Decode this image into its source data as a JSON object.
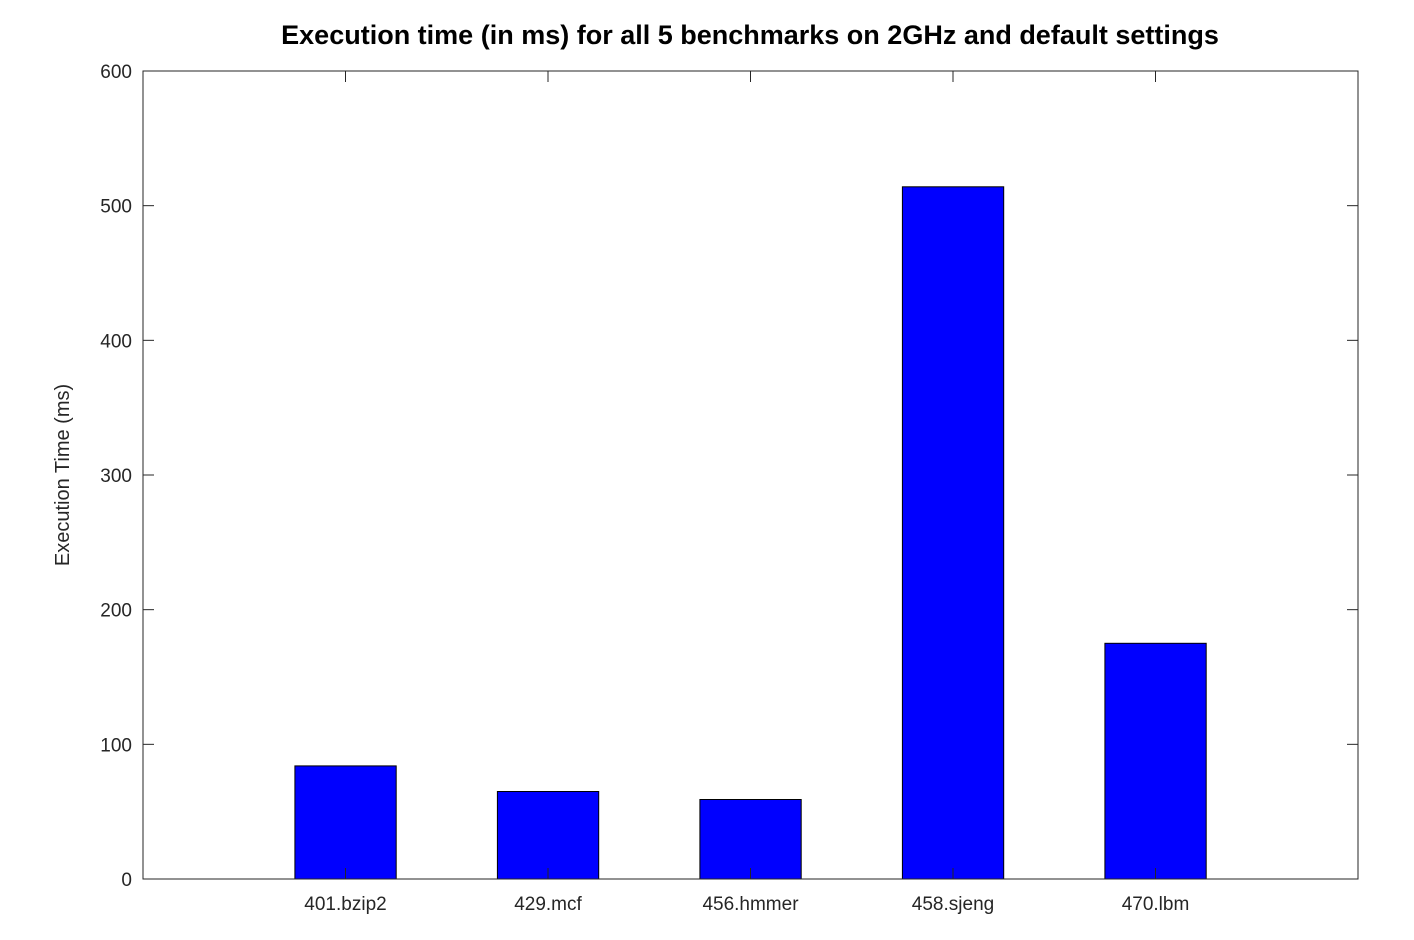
{
  "chart_data": {
    "type": "bar",
    "title": "Execution time (in ms) for all 5 benchmarks on 2GHz and default settings",
    "xlabel": "",
    "ylabel": "Execution Time (ms)",
    "categories": [
      "401.bzip2",
      "429.mcf",
      "456.hmmer",
      "458.sjeng",
      "470.lbm"
    ],
    "values": [
      84,
      65,
      59,
      514,
      175
    ],
    "ylim": [
      0,
      600
    ],
    "yticks": [
      0,
      100,
      200,
      300,
      400,
      500,
      600
    ],
    "xlim": [
      0.25,
      6.25
    ],
    "bar_color": "#0000ff",
    "bar_edge_color": "#000000",
    "grid": false,
    "legend": "none"
  }
}
